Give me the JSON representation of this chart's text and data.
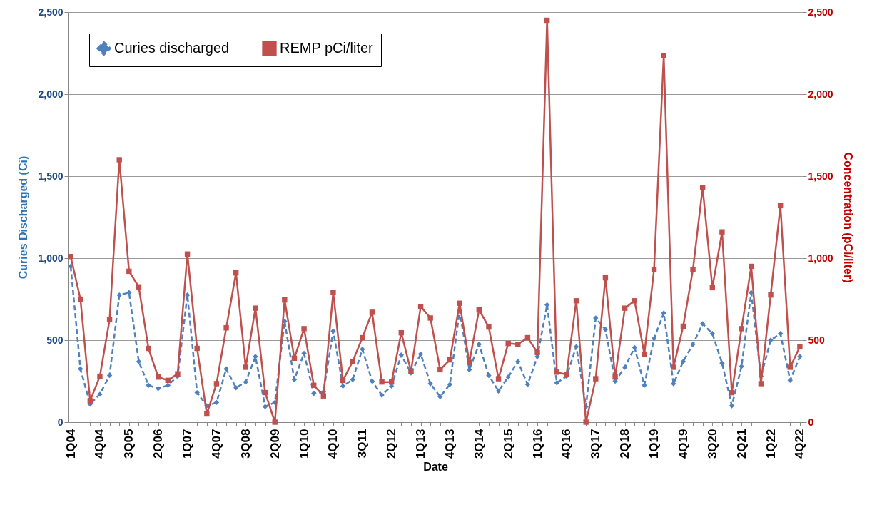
{
  "chart_data": {
    "type": "line",
    "xlabel": "Date",
    "ylabel": "Curies Discharged (Ci)",
    "y2label": "Concentration (pCi/liter)",
    "categories": [
      "1Q04",
      null,
      null,
      "4Q04",
      null,
      null,
      "3Q05",
      null,
      null,
      "2Q06",
      null,
      null,
      "1Q07",
      null,
      null,
      "4Q07",
      null,
      null,
      "3Q08",
      null,
      null,
      "2Q09",
      null,
      null,
      "1Q10",
      null,
      null,
      "4Q10",
      null,
      null,
      "3Q11",
      null,
      null,
      "2Q12",
      null,
      null,
      "1Q13",
      null,
      null,
      "4Q13",
      null,
      null,
      "3Q14",
      null,
      null,
      "2Q15",
      null,
      null,
      "1Q16",
      null,
      null,
      "4Q16",
      null,
      null,
      "3Q17",
      null,
      null,
      "2Q18",
      null,
      null,
      "1Q19",
      null,
      null,
      "4Q19",
      null,
      null,
      "3Q20",
      null,
      null,
      "2Q21",
      null,
      null,
      "1Q22",
      null,
      null,
      "4Q22"
    ],
    "series": [
      {
        "name": "Curies discharged",
        "color": "#4f81bd",
        "marker": "diamond",
        "line_style": "dashed",
        "values": [
          950,
          325,
          110,
          170,
          285,
          775,
          790,
          370,
          225,
          205,
          225,
          280,
          775,
          180,
          100,
          120,
          325,
          210,
          245,
          400,
          95,
          120,
          615,
          260,
          420,
          175,
          185,
          555,
          220,
          260,
          445,
          250,
          165,
          220,
          410,
          300,
          415,
          235,
          155,
          230,
          680,
          320,
          475,
          285,
          190,
          275,
          370,
          230,
          400,
          715,
          240,
          280,
          460,
          95,
          635,
          565,
          250,
          335,
          455,
          225,
          510,
          665,
          235,
          370,
          475,
          600,
          540,
          360,
          100,
          340,
          790,
          280,
          500,
          540,
          255,
          400
        ]
      },
      {
        "name": "REMP pCi/liter",
        "color": "#c0504d",
        "marker": "square",
        "line_style": "solid",
        "axis": "y2",
        "values": [
          1010,
          750,
          130,
          280,
          625,
          1600,
          920,
          825,
          450,
          275,
          255,
          295,
          1025,
          450,
          50,
          235,
          575,
          910,
          335,
          695,
          180,
          0,
          745,
          390,
          570,
          225,
          160,
          790,
          255,
          370,
          515,
          670,
          245,
          245,
          545,
          310,
          705,
          635,
          320,
          380,
          725,
          365,
          685,
          580,
          265,
          480,
          475,
          515,
          425,
          2450,
          305,
          290,
          740,
          0,
          265,
          880,
          275,
          695,
          740,
          415,
          930,
          2235,
          335,
          585,
          930,
          1430,
          820,
          1160,
          180,
          570,
          950,
          235,
          775,
          1320,
          335,
          460
        ]
      }
    ],
    "ylim": [
      0,
      2500
    ],
    "yticks": [
      {
        "value": 0,
        "label": "0"
      },
      {
        "value": 500,
        "label": "500"
      },
      {
        "value": 1000,
        "label": "1,000"
      },
      {
        "value": 1500,
        "label": "1,500"
      },
      {
        "value": 2000,
        "label": "2,000"
      },
      {
        "value": 2500,
        "label": "2,500"
      }
    ],
    "y2lim": [
      0,
      2500
    ],
    "y2ticks": [
      {
        "value": 0,
        "label": "0"
      },
      {
        "value": 500,
        "label": "500"
      },
      {
        "value": 1000,
        "label": "1,000"
      },
      {
        "value": 1500,
        "label": "1,500"
      },
      {
        "value": 2000,
        "label": "2,000"
      },
      {
        "value": 2500,
        "label": "2,500"
      }
    ],
    "grid": "y",
    "legend": "top left"
  }
}
